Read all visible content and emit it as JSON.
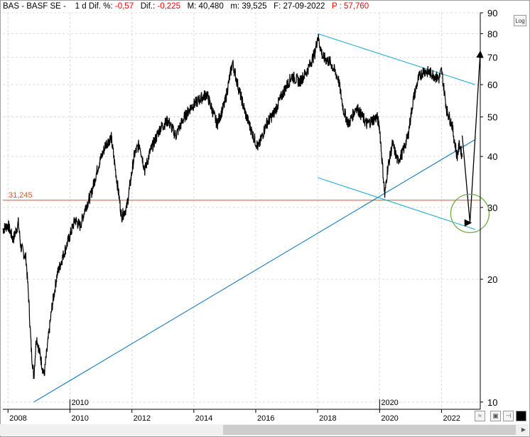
{
  "header": {
    "symbol": "BAS - BASF SE -",
    "interval": "1 d",
    "dif_pct_label": "Dif. %:",
    "dif_pct_value": "-0,57",
    "dif_label": "Dif.:",
    "dif_value": "-0,225",
    "max_label": "M:",
    "max_value": "40,480",
    "min_label": "m:",
    "min_value": "39,525",
    "date_label": "F:",
    "date_value": "27-09-2022",
    "p_label": "P :",
    "p_value": "57,760"
  },
  "log_button": "Log",
  "toolbar_icons": [
    "compare-icon",
    "save-icon",
    "pin-icon",
    "color-icon"
  ],
  "chart_data": {
    "type": "line",
    "y_scale": "log",
    "ylim": [
      9.6,
      90
    ],
    "y_ticks": [
      "10",
      "20",
      "30",
      "40",
      "50",
      "60",
      "70",
      "80",
      "90"
    ],
    "x_ticks": [
      "2008",
      "2010",
      "2012",
      "2014",
      "2016",
      "2018",
      "2020",
      "2022"
    ],
    "x_markers": [
      "2010",
      "2020"
    ],
    "xlim": [
      "2007-11",
      "2023-04"
    ],
    "horizontal_line": {
      "label": "31,245",
      "value": 31.245,
      "color": "#e0531b"
    },
    "series": [
      {
        "color": "#000000",
        "points": [
          [
            "2007-11",
            26.5
          ],
          [
            "2008-01",
            27.2
          ],
          [
            "2008-03",
            25.0
          ],
          [
            "2008-05",
            27.5
          ],
          [
            "2008-06",
            24.0
          ],
          [
            "2008-08",
            22.5
          ],
          [
            "2008-09",
            18.0
          ],
          [
            "2008-10",
            13.5
          ],
          [
            "2008-11",
            11.5
          ],
          [
            "2008-12",
            14.5
          ],
          [
            "2009-02",
            12.5
          ],
          [
            "2009-03",
            11.6
          ],
          [
            "2009-05",
            15.0
          ],
          [
            "2009-06",
            17.0
          ],
          [
            "2009-08",
            20.5
          ],
          [
            "2009-10",
            22.5
          ],
          [
            "2009-12",
            24.5
          ],
          [
            "2010-03",
            28.0
          ],
          [
            "2010-05",
            27.0
          ],
          [
            "2010-07",
            30.0
          ],
          [
            "2010-09",
            32.0
          ],
          [
            "2010-12",
            38.0
          ],
          [
            "2011-03",
            43.0
          ],
          [
            "2011-05",
            44.5
          ],
          [
            "2011-08",
            32.0
          ],
          [
            "2011-09",
            28.5
          ],
          [
            "2011-11",
            30.0
          ],
          [
            "2012-02",
            40.5
          ],
          [
            "2012-04",
            43.0
          ],
          [
            "2012-06",
            37.0
          ],
          [
            "2012-08",
            41.0
          ],
          [
            "2012-12",
            47.0
          ],
          [
            "2013-03",
            49.0
          ],
          [
            "2013-06",
            45.0
          ],
          [
            "2013-09",
            49.5
          ],
          [
            "2013-12",
            53.0
          ],
          [
            "2014-03",
            55.0
          ],
          [
            "2014-06",
            57.0
          ],
          [
            "2014-10",
            48.0
          ],
          [
            "2015-01",
            54.0
          ],
          [
            "2015-04",
            68.0
          ],
          [
            "2015-06",
            60.0
          ],
          [
            "2015-09",
            51.0
          ],
          [
            "2015-12",
            45.0
          ],
          [
            "2016-02",
            42.0
          ],
          [
            "2016-05",
            48.0
          ],
          [
            "2016-08",
            51.0
          ],
          [
            "2016-12",
            58.0
          ],
          [
            "2017-03",
            63.0
          ],
          [
            "2017-06",
            61.0
          ],
          [
            "2017-09",
            65.0
          ],
          [
            "2017-12",
            72.0
          ],
          [
            "2018-01",
            79.0
          ],
          [
            "2018-03",
            70.0
          ],
          [
            "2018-06",
            68.0
          ],
          [
            "2018-09",
            62.0
          ],
          [
            "2018-11",
            52.0
          ],
          [
            "2019-01",
            48.0
          ],
          [
            "2019-04",
            53.0
          ],
          [
            "2019-08",
            48.0
          ],
          [
            "2019-12",
            50.0
          ],
          [
            "2020-01",
            47.0
          ],
          [
            "2020-03",
            32.0
          ],
          [
            "2020-04",
            37.0
          ],
          [
            "2020-06",
            43.0
          ],
          [
            "2020-08",
            39.0
          ],
          [
            "2020-10",
            41.0
          ],
          [
            "2020-12",
            45.0
          ],
          [
            "2021-02",
            55.0
          ],
          [
            "2021-04",
            62.0
          ],
          [
            "2021-06",
            65.0
          ],
          [
            "2021-09",
            64.0
          ],
          [
            "2021-12",
            62.0
          ],
          [
            "2022-01",
            65.0
          ],
          [
            "2022-03",
            52.0
          ],
          [
            "2022-05",
            48.0
          ],
          [
            "2022-07",
            40.0
          ],
          [
            "2022-08",
            43.0
          ],
          [
            "2022-09",
            39.9
          ]
        ]
      }
    ],
    "annotations": [
      {
        "type": "trendline",
        "color": "#0070c0",
        "from": [
          "2008-11",
          10.0
        ],
        "to": [
          "2023-02",
          44.0
        ]
      },
      {
        "type": "trendline",
        "color": "#1aa7d6",
        "from": [
          "2018-01",
          80.0
        ],
        "to": [
          "2023-02",
          60.0
        ]
      },
      {
        "type": "trendline",
        "color": "#1aa7d6",
        "from": [
          "2018-01",
          35.5
        ],
        "to": [
          "2023-02",
          26.5
        ]
      },
      {
        "type": "arrow",
        "color": "#000000",
        "points": [
          [
            "2022-09",
            45.0
          ],
          [
            "2022-12",
            27.5
          ],
          [
            "2023-04",
            72.0
          ]
        ]
      },
      {
        "type": "circle",
        "color": "#70ad47",
        "center": [
          "2022-12",
          29.0
        ]
      }
    ]
  }
}
